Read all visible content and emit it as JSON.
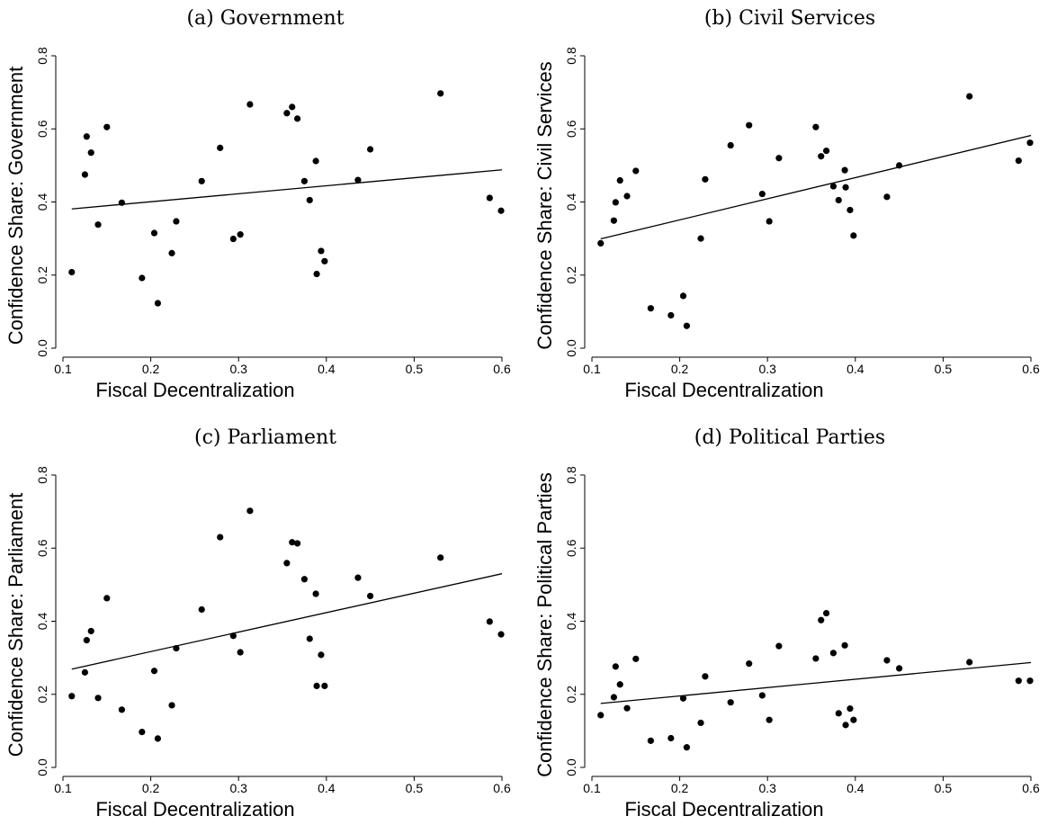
{
  "chart_data": [
    {
      "type": "scatter",
      "title": "(a) Government",
      "xlabel": "Fiscal Decentralization",
      "ylabel": "Confidence Share: Government",
      "xlim": [
        0.1,
        0.6
      ],
      "ylim": [
        0,
        0.8
      ],
      "xticks": [
        "0.1",
        "0.2",
        "0.3",
        "0.4",
        "0.5",
        "0.6"
      ],
      "yticks": [
        "0.0",
        "0.2",
        "0.4",
        "0.6",
        "0.8"
      ],
      "x": [
        0.11,
        0.125,
        0.127,
        0.132,
        0.14,
        0.15,
        0.167,
        0.19,
        0.204,
        0.208,
        0.224,
        0.229,
        0.258,
        0.279,
        0.294,
        0.302,
        0.313,
        0.355,
        0.361,
        0.367,
        0.375,
        0.381,
        0.388,
        0.389,
        0.394,
        0.398,
        0.436,
        0.45,
        0.53,
        0.586,
        0.599
      ],
      "y": [
        0.208,
        0.475,
        0.579,
        0.535,
        0.338,
        0.605,
        0.398,
        0.192,
        0.315,
        0.123,
        0.26,
        0.347,
        0.457,
        0.548,
        0.299,
        0.311,
        0.667,
        0.643,
        0.66,
        0.628,
        0.457,
        0.405,
        0.512,
        0.203,
        0.266,
        0.238,
        0.46,
        0.544,
        0.697,
        0.411,
        0.376
      ],
      "fit": {
        "x": [
          0.11,
          0.6
        ],
        "y": [
          0.381,
          0.488
        ]
      },
      "grid": false
    },
    {
      "type": "scatter",
      "title": "(b) Civil Services",
      "xlabel": "Fiscal Decentralization",
      "ylabel": "Confidence Share: Civil Services",
      "xlim": [
        0.1,
        0.6
      ],
      "ylim": [
        0,
        0.8
      ],
      "xticks": [
        "0.1",
        "0.2",
        "0.3",
        "0.4",
        "0.5",
        "0.6"
      ],
      "yticks": [
        "0.0",
        "0.2",
        "0.4",
        "0.6",
        "0.8"
      ],
      "x": [
        0.11,
        0.125,
        0.127,
        0.132,
        0.14,
        0.15,
        0.167,
        0.19,
        0.204,
        0.208,
        0.224,
        0.229,
        0.258,
        0.279,
        0.294,
        0.302,
        0.313,
        0.355,
        0.361,
        0.367,
        0.375,
        0.381,
        0.388,
        0.389,
        0.394,
        0.398,
        0.436,
        0.45,
        0.53,
        0.586,
        0.599
      ],
      "y": [
        0.287,
        0.349,
        0.399,
        0.459,
        0.416,
        0.485,
        0.109,
        0.09,
        0.143,
        0.061,
        0.3,
        0.462,
        0.555,
        0.61,
        0.422,
        0.347,
        0.52,
        0.605,
        0.525,
        0.54,
        0.443,
        0.405,
        0.487,
        0.44,
        0.378,
        0.308,
        0.414,
        0.5,
        0.689,
        0.513,
        0.562
      ],
      "fit": {
        "x": [
          0.11,
          0.6
        ],
        "y": [
          0.299,
          0.582
        ]
      },
      "grid": false
    },
    {
      "type": "scatter",
      "title": "(c) Parliament",
      "xlabel": "Fiscal Decentralization",
      "ylabel": "Confidence Share: Parliament",
      "xlim": [
        0.1,
        0.6
      ],
      "ylim": [
        0,
        0.8
      ],
      "xticks": [
        "0.1",
        "0.2",
        "0.3",
        "0.4",
        "0.5",
        "0.6"
      ],
      "yticks": [
        "0.0",
        "0.2",
        "0.4",
        "0.6",
        "0.8"
      ],
      "x": [
        0.11,
        0.125,
        0.127,
        0.132,
        0.14,
        0.15,
        0.167,
        0.19,
        0.204,
        0.208,
        0.224,
        0.229,
        0.258,
        0.279,
        0.294,
        0.302,
        0.313,
        0.355,
        0.361,
        0.367,
        0.375,
        0.381,
        0.388,
        0.389,
        0.394,
        0.398,
        0.436,
        0.45,
        0.53,
        0.586,
        0.599
      ],
      "y": [
        0.195,
        0.26,
        0.348,
        0.373,
        0.19,
        0.463,
        0.158,
        0.097,
        0.264,
        0.079,
        0.17,
        0.326,
        0.432,
        0.63,
        0.36,
        0.315,
        0.702,
        0.559,
        0.616,
        0.613,
        0.515,
        0.352,
        0.475,
        0.223,
        0.308,
        0.223,
        0.519,
        0.469,
        0.574,
        0.399,
        0.364
      ],
      "fit": {
        "x": [
          0.11,
          0.6
        ],
        "y": [
          0.269,
          0.53
        ]
      },
      "grid": false
    },
    {
      "type": "scatter",
      "title": "(d) Political Parties",
      "xlabel": "Fiscal Decentralization",
      "ylabel": "Confidence Share: Political Parties",
      "xlim": [
        0.1,
        0.6
      ],
      "ylim": [
        0,
        0.8
      ],
      "xticks": [
        "0.1",
        "0.2",
        "0.3",
        "0.4",
        "0.5",
        "0.6"
      ],
      "yticks": [
        "0.0",
        "0.2",
        "0.4",
        "0.6",
        "0.8"
      ],
      "x": [
        0.11,
        0.125,
        0.127,
        0.132,
        0.14,
        0.15,
        0.167,
        0.19,
        0.204,
        0.208,
        0.224,
        0.229,
        0.258,
        0.279,
        0.294,
        0.302,
        0.313,
        0.355,
        0.361,
        0.367,
        0.375,
        0.381,
        0.388,
        0.389,
        0.394,
        0.398,
        0.436,
        0.45,
        0.53,
        0.586,
        0.599
      ],
      "y": [
        0.143,
        0.192,
        0.276,
        0.227,
        0.162,
        0.297,
        0.073,
        0.08,
        0.189,
        0.055,
        0.122,
        0.249,
        0.178,
        0.284,
        0.197,
        0.13,
        0.332,
        0.298,
        0.403,
        0.422,
        0.313,
        0.148,
        0.334,
        0.116,
        0.161,
        0.13,
        0.293,
        0.271,
        0.288,
        0.237,
        0.237
      ],
      "fit": {
        "x": [
          0.11,
          0.6
        ],
        "y": [
          0.175,
          0.287
        ]
      },
      "grid": false
    }
  ]
}
